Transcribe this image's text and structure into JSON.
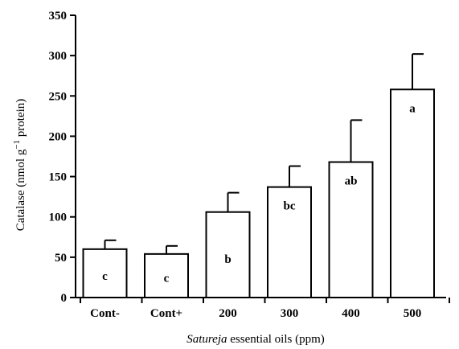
{
  "chart_data": {
    "type": "bar",
    "categories": [
      "Cont-",
      "Cont+",
      "200",
      "300",
      "400",
      "500"
    ],
    "values": [
      60,
      54,
      106,
      137,
      168,
      258
    ],
    "error": [
      11,
      10,
      24,
      26,
      52,
      44
    ],
    "letters": [
      "c",
      "c",
      "b",
      "bc",
      "ab",
      "a"
    ],
    "xlabel": {
      "italic": "Satureja",
      "rest": " essential oils (ppm)"
    },
    "ylabel": {
      "main": "Catalase (nmol g",
      "sup": "−1",
      "tail": " protein)"
    },
    "ylim": [
      0,
      350
    ],
    "yticks": [
      0,
      50,
      100,
      150,
      200,
      250,
      300,
      350
    ],
    "grid": false,
    "bar_fill": "#ffffff",
    "bar_stroke": "#000000"
  }
}
